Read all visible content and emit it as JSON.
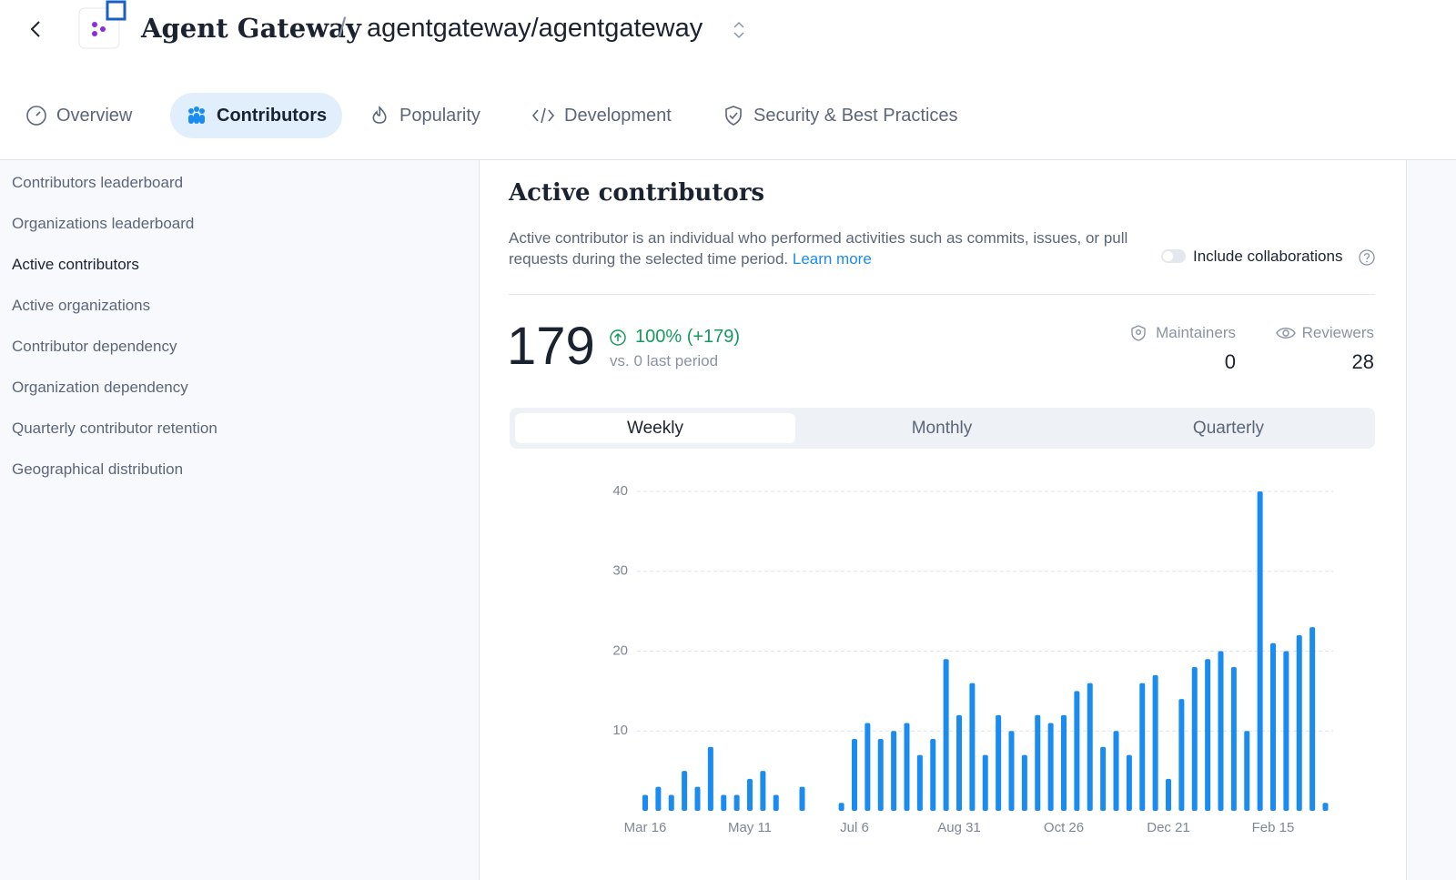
{
  "header": {
    "title": "Agent Gateway",
    "separator": "/",
    "repo": "agentgateway/agentgateway"
  },
  "tabs": [
    "Overview",
    "Contributors",
    "Popularity",
    "Development",
    "Security & Best Practices"
  ],
  "sidebar": [
    "Contributors leaderboard",
    "Organizations leaderboard",
    "Active contributors",
    "Active organizations",
    "Contributor dependency",
    "Organization dependency",
    "Quarterly contributor retention",
    "Geographical distribution"
  ],
  "section": {
    "title": "Active contributors",
    "description": "Active contributor is an individual who performed activities such as commits, issues, or pull requests during the selected time period.",
    "link": "Learn more",
    "toggle_label": "Include collaborations",
    "total": 179,
    "change": "100% (+179)",
    "comparison": "vs. 0 last period",
    "stats": [
      {
        "label": "Maintainers",
        "value": 0
      },
      {
        "label": "Reviewers",
        "value": 28
      }
    ],
    "periods": [
      "Weekly",
      "Monthly",
      "Quarterly"
    ]
  },
  "chart_data": {
    "type": "bar",
    "categories": [
      "Mar 16",
      null,
      null,
      null,
      null,
      null,
      null,
      null,
      "May 11",
      null,
      null,
      null,
      null,
      null,
      null,
      null,
      "Jul 6",
      null,
      null,
      null,
      null,
      null,
      null,
      null,
      "Aug 31",
      null,
      null,
      null,
      null,
      null,
      null,
      null,
      "Oct 26",
      null,
      null,
      null,
      null,
      null,
      null,
      null,
      "Dec 21",
      null,
      null,
      null,
      null,
      null,
      null,
      null,
      "Feb 15",
      null,
      null,
      null,
      null
    ],
    "values": [
      2,
      3,
      2,
      5,
      3,
      8,
      2,
      2,
      4,
      5,
      2,
      0,
      3,
      0,
      0,
      1,
      9,
      11,
      9,
      10,
      11,
      7,
      9,
      19,
      12,
      16,
      7,
      12,
      10,
      7,
      12,
      11,
      12,
      15,
      16,
      8,
      10,
      7,
      16,
      17,
      4,
      14,
      18,
      19,
      20,
      18,
      10,
      40,
      21,
      20,
      22,
      23,
      1
    ],
    "color": "#1a8cf0",
    "ylim": [
      0,
      40
    ],
    "yticks": [
      10,
      20,
      30,
      40
    ],
    "grid": true
  }
}
